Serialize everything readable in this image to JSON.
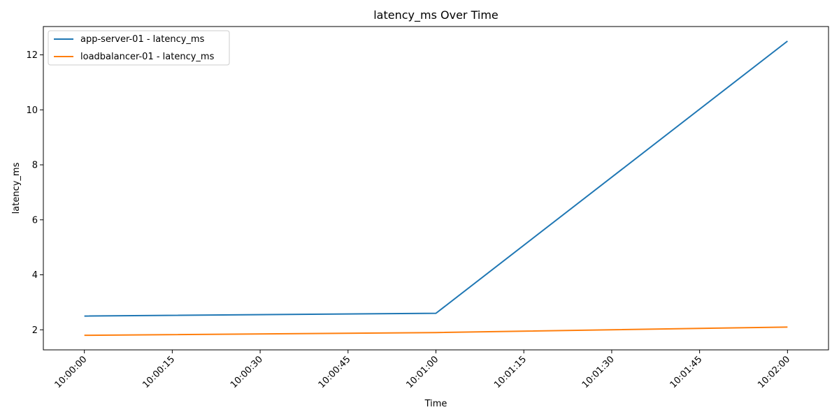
{
  "chart_data": {
    "type": "line",
    "title": "latency_ms Over Time",
    "xlabel": "Time",
    "ylabel": "latency_ms",
    "x": [
      "10:00:00",
      "10:01:00",
      "10:02:00"
    ],
    "series": [
      {
        "name": "app-server-01 - latency_ms",
        "color": "#1f77b4",
        "values": [
          2.5,
          2.6,
          12.5
        ]
      },
      {
        "name": "loadbalancer-01 - latency_ms",
        "color": "#ff7f0e",
        "values": [
          1.8,
          1.9,
          2.1
        ]
      }
    ],
    "x_ticks": [
      "10:00:00",
      "10:00:15",
      "10:00:30",
      "10:00:45",
      "10:01:00",
      "10:01:15",
      "10:01:30",
      "10:01:45",
      "10:02:00"
    ],
    "x_range": [
      "09:59:53",
      "10:02:07"
    ],
    "y_ticks": [
      2,
      4,
      6,
      8,
      10,
      12
    ],
    "ylim": [
      1.27,
      13.03
    ],
    "grid": false,
    "legend_position": "top-left"
  }
}
